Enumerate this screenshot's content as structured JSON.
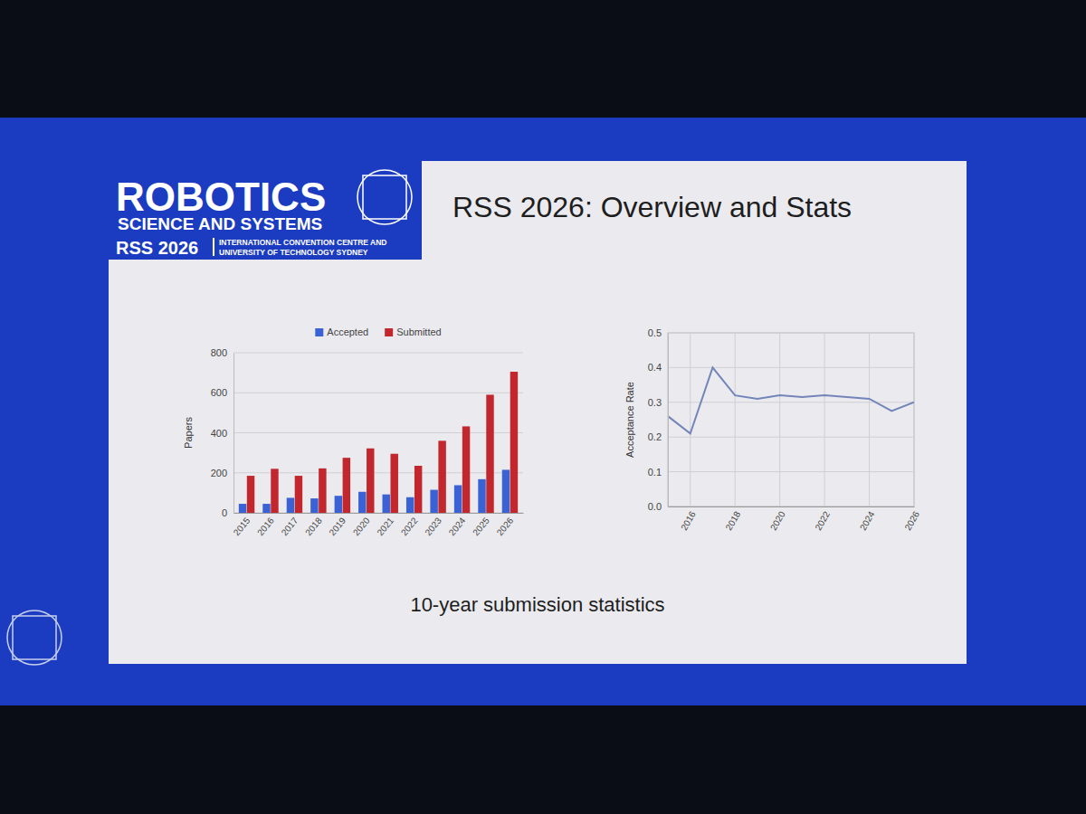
{
  "slide": {
    "logo_title": "ROBOTICS",
    "logo_subtitle": "SCIENCE AND SYSTEMS",
    "event": "RSS 2026",
    "venue": [
      "INTERNATIONAL CONVENTION CENTRE AND",
      "UNIVERSITY OF TECHNOLOGY SYDNEY"
    ],
    "title": "RSS 2026: Overview and Stats",
    "caption": "10-year submission statistics"
  },
  "chart_data": [
    {
      "type": "bar",
      "y_label": "Papers",
      "categories": [
        "2015",
        "2016",
        "2017",
        "2018",
        "2019",
        "2020",
        "2021",
        "2022",
        "2023",
        "2024",
        "2025",
        "2026"
      ],
      "series": [
        {
          "name": "Accepted",
          "color": "#3b62d4",
          "values": [
            45,
            45,
            75,
            72,
            85,
            105,
            92,
            78,
            115,
            138,
            168,
            215
          ]
        },
        {
          "name": "Submitted",
          "color": "#c1272d",
          "values": [
            185,
            220,
            185,
            222,
            275,
            322,
            295,
            235,
            360,
            432,
            590,
            705
          ]
        }
      ],
      "ylim": [
        0,
        800
      ],
      "yticks": [
        0,
        200,
        400,
        600,
        800
      ],
      "grid": true,
      "legend": "top"
    },
    {
      "type": "line",
      "y_label": "Acceptance Rate",
      "x": [
        2015,
        2016,
        2017,
        2018,
        2019,
        2020,
        2021,
        2022,
        2023,
        2024,
        2025,
        2026
      ],
      "values": [
        0.26,
        0.21,
        0.4,
        0.32,
        0.31,
        0.32,
        0.315,
        0.32,
        0.315,
        0.31,
        0.275,
        0.3
      ],
      "color": "#7385b8",
      "xlim": [
        2015,
        2026
      ],
      "xticks": [
        2016,
        2018,
        2020,
        2022,
        2024,
        2026
      ],
      "ylim": [
        0,
        0.5
      ],
      "yticks": [
        {
          "value": 0,
          "label": "0.0"
        },
        0.1,
        0.2,
        0.3,
        0.4,
        0.5
      ],
      "grid": true
    }
  ]
}
